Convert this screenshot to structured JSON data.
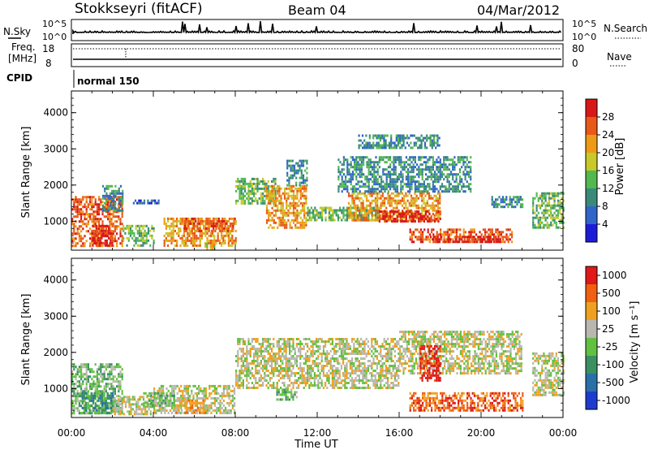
{
  "header": {
    "station": "Stokkseyri (fitACF)",
    "beam": "Beam 04",
    "date": "04/Mar/2012"
  },
  "noise_panel": {
    "left_label": "N.Sky",
    "right_label": "N.Search",
    "left_ticks": [
      "10^5",
      "10^0"
    ],
    "right_ticks": [
      "10^5",
      "10^0"
    ]
  },
  "freq_panel": {
    "left_label_line1": "Freq.",
    "left_label_line2": "[MHz]",
    "right_label": "Nave",
    "left_ticks": [
      "18",
      "8"
    ],
    "right_ticks": [
      "80",
      "0"
    ]
  },
  "cpid_panel": {
    "label": "CPID",
    "program": "normal 150"
  },
  "time_axis": {
    "label": "Time UT",
    "ticks": [
      "00:00",
      "04:00",
      "08:00",
      "12:00",
      "16:00",
      "20:00",
      "00:00"
    ]
  },
  "chart_data": [
    {
      "type": "heatmap",
      "title": "",
      "xlabel": "Time UT",
      "ylabel": "Slant Range [km]",
      "xlim": [
        0,
        24
      ],
      "ylim": [
        200,
        4600
      ],
      "y_ticks": [
        "1000",
        "2000",
        "3000",
        "4000"
      ],
      "colorbar_label": "Power [dB]",
      "colorbar_ticks": [
        "4",
        "8",
        "12",
        "16",
        "20",
        "24",
        "28"
      ],
      "colorbar_colors": [
        "#1c1cd8",
        "#2f66c8",
        "#3a8a7a",
        "#52b84f",
        "#c8c828",
        "#ee9a18",
        "#e85818",
        "#d81818"
      ],
      "regions": [
        {
          "t0": 0.0,
          "t1": 2.5,
          "r0": 300,
          "r1": 1700,
          "level": 6
        },
        {
          "t0": 1.0,
          "t1": 2.0,
          "r0": 300,
          "r1": 900,
          "level": 7
        },
        {
          "t0": 1.5,
          "t1": 2.5,
          "r0": 1300,
          "r1": 2000,
          "level": 2
        },
        {
          "t0": 2.5,
          "t1": 4.0,
          "r0": 300,
          "r1": 900,
          "level": 3
        },
        {
          "t0": 3.0,
          "t1": 4.3,
          "r0": 1500,
          "r1": 1600,
          "level": 1
        },
        {
          "t0": 4.5,
          "t1": 8.0,
          "r0": 300,
          "r1": 1100,
          "level": 5
        },
        {
          "t0": 5.5,
          "t1": 8.0,
          "r0": 700,
          "r1": 1100,
          "level": 6
        },
        {
          "t0": 6.5,
          "t1": 7.0,
          "r0": 200,
          "r1": 400,
          "level": 4
        },
        {
          "t0": 8.0,
          "t1": 10.0,
          "r0": 1500,
          "r1": 2200,
          "level": 3
        },
        {
          "t0": 9.5,
          "t1": 11.5,
          "r0": 800,
          "r1": 2000,
          "level": 5
        },
        {
          "t0": 10.5,
          "t1": 11.5,
          "r0": 2000,
          "r1": 2700,
          "level": 2
        },
        {
          "t0": 11.5,
          "t1": 15.0,
          "r0": 1000,
          "r1": 1400,
          "level": 3
        },
        {
          "t0": 13.5,
          "t1": 18.0,
          "r0": 1000,
          "r1": 1800,
          "level": 5
        },
        {
          "t0": 15.0,
          "t1": 18.0,
          "r0": 1000,
          "r1": 1300,
          "level": 7
        },
        {
          "t0": 13.0,
          "t1": 19.5,
          "r0": 1800,
          "r1": 2800,
          "level": 2
        },
        {
          "t0": 16.5,
          "t1": 21.5,
          "r0": 400,
          "r1": 800,
          "level": 6
        },
        {
          "t0": 17.5,
          "t1": 21.0,
          "r0": 400,
          "r1": 600,
          "level": 7
        },
        {
          "t0": 20.5,
          "t1": 22.0,
          "r0": 1400,
          "r1": 1700,
          "level": 2
        },
        {
          "t0": 22.5,
          "t1": 24.0,
          "r0": 800,
          "r1": 1800,
          "level": 3
        },
        {
          "t0": 14.0,
          "t1": 18.0,
          "r0": 3000,
          "r1": 3400,
          "level": 2
        }
      ]
    },
    {
      "type": "heatmap",
      "title": "",
      "xlabel": "Time UT",
      "ylabel": "Slant Range [km]",
      "xlim": [
        0,
        24
      ],
      "ylim": [
        200,
        4600
      ],
      "y_ticks": [
        "1000",
        "2000",
        "3000",
        "4000"
      ],
      "colorbar_label": "Velocity [m s⁻¹]",
      "colorbar_ticks": [
        "1000",
        "500",
        "100",
        "25",
        "-25",
        "-100",
        "-500",
        "-1000"
      ],
      "colorbar_colors": [
        "#1c3cd0",
        "#2a70a8",
        "#3a9060",
        "#62c040",
        "#b8b8b0",
        "#f0a020",
        "#f06010",
        "#e01818"
      ],
      "regions": [
        {
          "t0": 0.0,
          "t1": 2.5,
          "r0": 300,
          "r1": 1700,
          "level": 3
        },
        {
          "t0": 0.5,
          "t1": 2.0,
          "r0": 300,
          "r1": 900,
          "level": 2
        },
        {
          "t0": 2.0,
          "t1": 4.0,
          "r0": 300,
          "r1": 800,
          "level": 4
        },
        {
          "t0": 4.0,
          "t1": 8.0,
          "r0": 300,
          "r1": 1100,
          "level": 4
        },
        {
          "t0": 5.0,
          "t1": 6.5,
          "r0": 300,
          "r1": 700,
          "level": 5
        },
        {
          "t0": 3.5,
          "t1": 5.0,
          "r0": 500,
          "r1": 900,
          "level": 3
        },
        {
          "t0": 8.0,
          "t1": 16.0,
          "r0": 1000,
          "r1": 2400,
          "level": 4
        },
        {
          "t0": 10.0,
          "t1": 11.0,
          "r0": 700,
          "r1": 1000,
          "level": 3
        },
        {
          "t0": 16.0,
          "t1": 22.0,
          "r0": 1400,
          "r1": 2600,
          "level": 4
        },
        {
          "t0": 16.5,
          "t1": 22.0,
          "r0": 400,
          "r1": 900,
          "level": 6
        },
        {
          "t0": 17.0,
          "t1": 18.0,
          "r0": 1200,
          "r1": 2200,
          "level": 7
        },
        {
          "t0": 22.5,
          "t1": 24.0,
          "r0": 800,
          "r1": 2000,
          "level": 4
        }
      ]
    }
  ]
}
